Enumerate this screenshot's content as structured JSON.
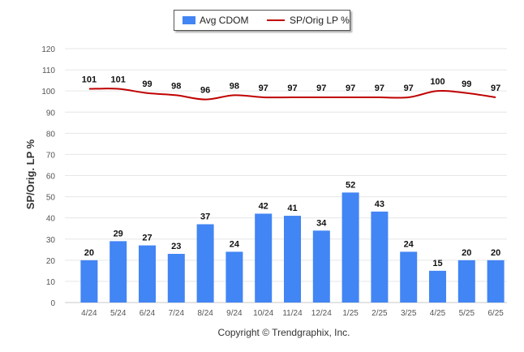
{
  "chart_data": {
    "type": "bar",
    "categories": [
      "4/24",
      "5/24",
      "6/24",
      "7/24",
      "8/24",
      "9/24",
      "10/24",
      "11/24",
      "12/24",
      "1/25",
      "2/25",
      "3/25",
      "4/25",
      "5/25",
      "6/25"
    ],
    "series": [
      {
        "name": "Avg CDOM",
        "type": "bar",
        "color": "#4285f4",
        "values": [
          20,
          29,
          27,
          23,
          37,
          24,
          42,
          41,
          34,
          52,
          43,
          24,
          15,
          20,
          20
        ]
      },
      {
        "name": "SP/Orig LP %",
        "type": "line",
        "color": "#c00000",
        "values": [
          101,
          101,
          99,
          98,
          96,
          98,
          97,
          97,
          97,
          97,
          97,
          97,
          100,
          99,
          97
        ]
      }
    ],
    "ylabel": "SP/Orig. LP %",
    "ylim": [
      0,
      120
    ],
    "yticks": [
      0,
      10,
      20,
      30,
      40,
      50,
      60,
      70,
      80,
      90,
      100,
      110,
      120
    ],
    "grid": true,
    "legend": "top-center"
  },
  "footer": {
    "copyright": "Copyright © Trendgraphix, Inc."
  }
}
